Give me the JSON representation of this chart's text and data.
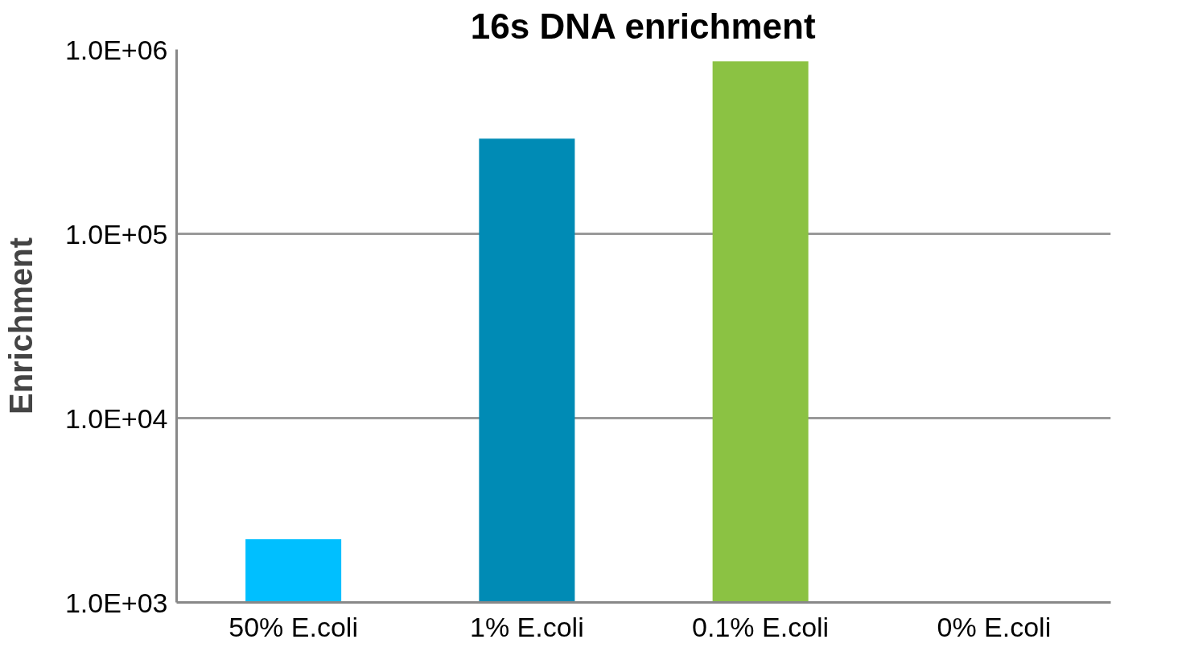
{
  "chart_data": {
    "type": "bar",
    "title": "16s DNA enrichment",
    "ylabel": "Enrichment",
    "categories": [
      "50% E.coli",
      "1% E.coli",
      "0.1% E.coli",
      "0% E.coli"
    ],
    "values": [
      2200,
      328000,
      863000,
      null
    ],
    "colors": [
      "#00bfff",
      "#008bb5",
      "#8bc243",
      "#8bc243"
    ],
    "log": "y",
    "ylim": [
      1000,
      1000000
    ],
    "yticks": [
      {
        "value": 1000,
        "label": "1.0E+03"
      },
      {
        "value": 10000,
        "label": "1.0E+04"
      },
      {
        "value": 100000,
        "label": "1.0E+05"
      },
      {
        "value": 1000000,
        "label": "1.0E+06"
      }
    ],
    "grid": "y"
  }
}
